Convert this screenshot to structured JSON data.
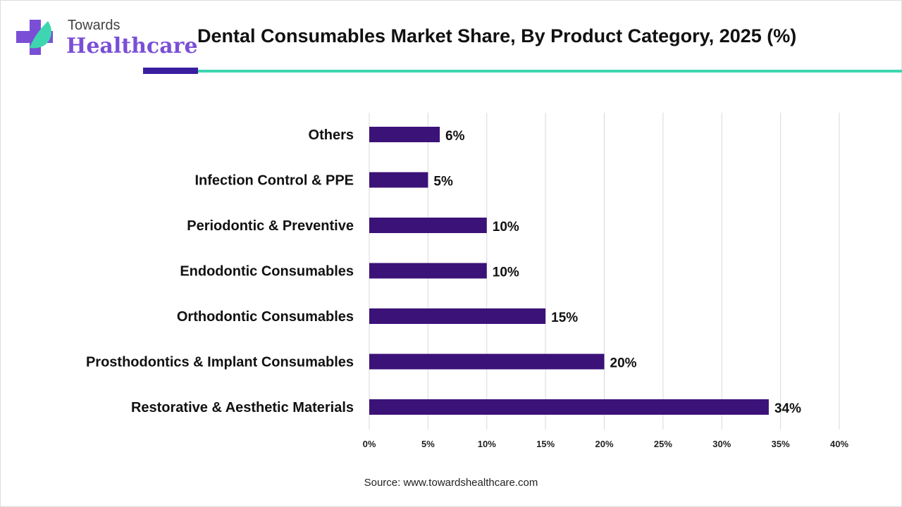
{
  "logo": {
    "line1": "Towards",
    "line2": "Healthcare"
  },
  "colors": {
    "bar": "#3b1278",
    "accent_dark": "#3a1ea0",
    "accent_teal": "#3dd6b0"
  },
  "chart_data": {
    "type": "bar",
    "orientation": "horizontal",
    "title": "Dental Consumables Market Share, By Product Category, 2025 (%)",
    "categories": [
      "Others",
      "Infection Control & PPE",
      "Periodontic & Preventive",
      "Endodontic Consumables",
      "Orthodontic Consumables",
      "Prosthodontics & Implant Consumables",
      "Restorative & Aesthetic Materials"
    ],
    "values": [
      6,
      5,
      10,
      10,
      15,
      20,
      34
    ],
    "data_labels": [
      "6%",
      "5%",
      "10%",
      "10%",
      "15%",
      "20%",
      "34%"
    ],
    "xlim": [
      0,
      40
    ],
    "x_ticks": [
      "0%",
      "5%",
      "10%",
      "15%",
      "20%",
      "25%",
      "30%",
      "35%",
      "40%"
    ],
    "grid": "vertical"
  },
  "source": "Source: www.towardshealthcare.com"
}
